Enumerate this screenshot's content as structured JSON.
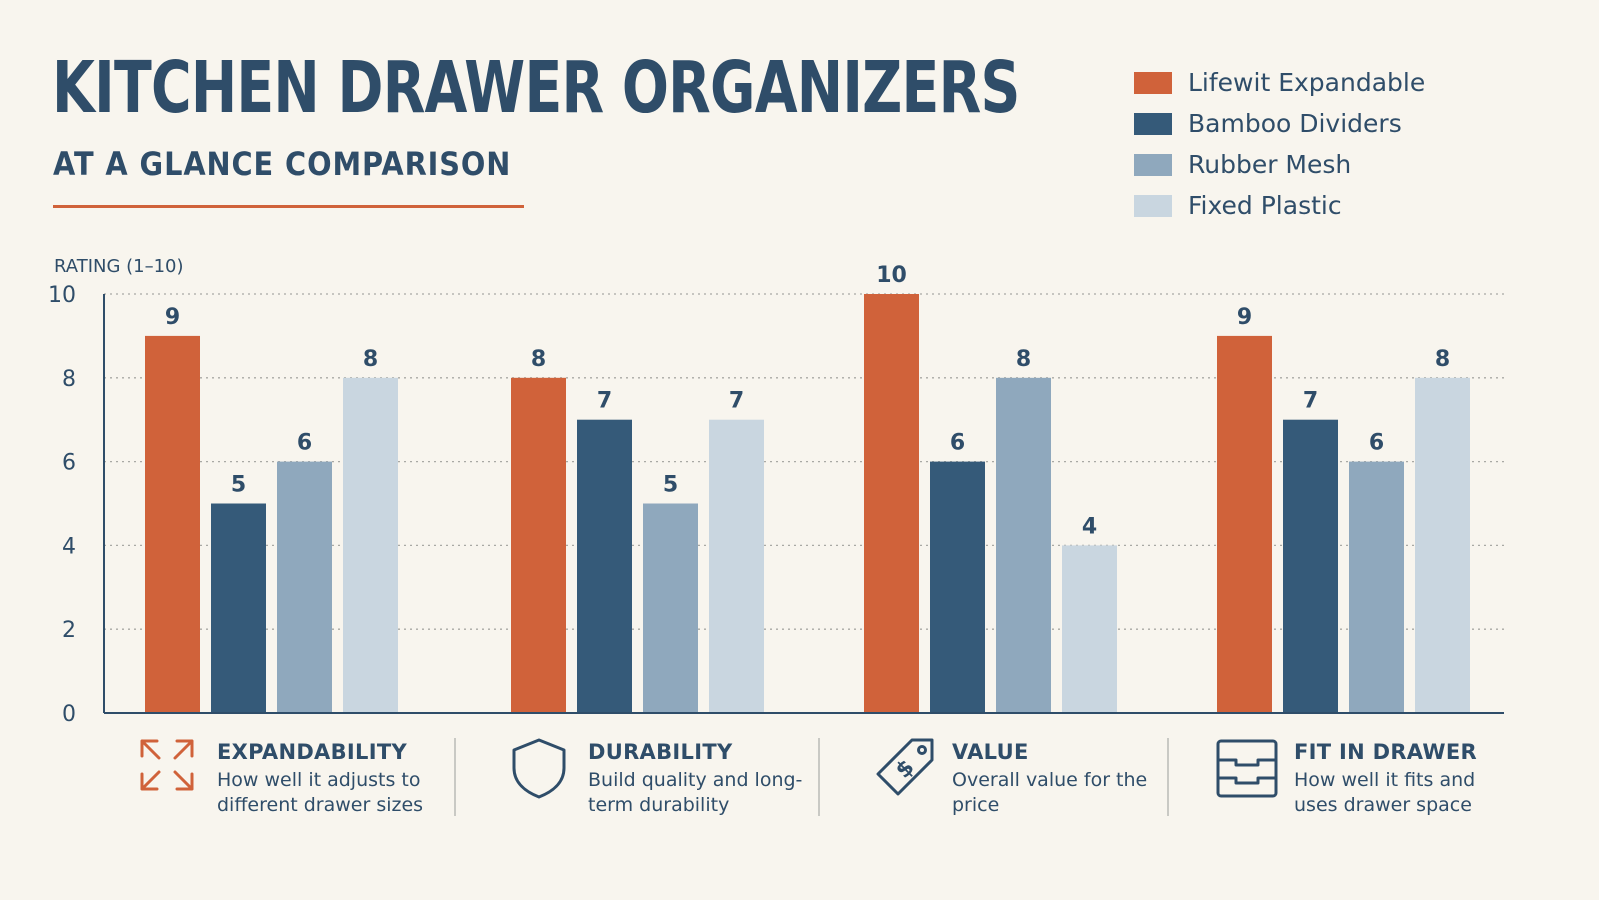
{
  "title": "KITCHEN DRAWER ORGANIZERS",
  "subtitle": "AT A GLANCE COMPARISON",
  "colors": {
    "accent": "#d0623a",
    "series": [
      "#d0623a",
      "#355a79",
      "#8fa8bd",
      "#c9d6e0"
    ]
  },
  "chart_data": {
    "type": "bar",
    "ylabel": "RATING (1–10)",
    "ylim": [
      0,
      10
    ],
    "yticks": [
      "0",
      "2",
      "4",
      "6",
      "8",
      "10"
    ],
    "grid": true,
    "legend_position": "top-right",
    "categories": [
      "EXPANDABILITY",
      "DURABILITY",
      "VALUE",
      "FIT IN DRAWER"
    ],
    "series": [
      {
        "name": "Lifewit Expandable",
        "values": [
          9,
          8,
          10,
          9
        ]
      },
      {
        "name": "Bamboo Dividers",
        "values": [
          5,
          7,
          6,
          7
        ]
      },
      {
        "name": "Rubber Mesh",
        "values": [
          6,
          5,
          8,
          6
        ]
      },
      {
        "name": "Fixed Plastic",
        "values": [
          8,
          7,
          4,
          8
        ]
      }
    ]
  },
  "categories_info": [
    {
      "name": "EXPANDABILITY",
      "desc": "How well it adjusts to different drawer sizes",
      "icon": "expand-arrows-icon"
    },
    {
      "name": "DURABILITY",
      "desc": "Build quality and long-term durability",
      "icon": "shield-icon"
    },
    {
      "name": "VALUE",
      "desc": "Overall value for the price",
      "icon": "price-tag-icon"
    },
    {
      "name": "FIT IN DRAWER",
      "desc": "How well it fits and uses drawer space",
      "icon": "drawer-icon"
    }
  ]
}
